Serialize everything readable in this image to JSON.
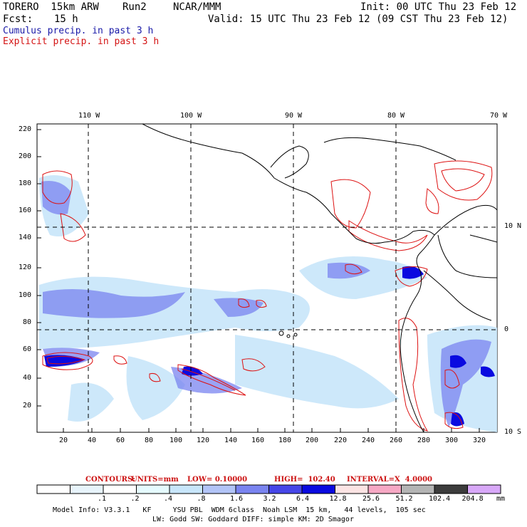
{
  "header": {
    "model": "TORERO  15km ARW",
    "run": "Run2",
    "org": "NCAR/MMM",
    "init": "Init: 00 UTC Thu 23 Feb 12",
    "fcst_label": "Fcst:",
    "fcst_value": "15 h",
    "valid": "Valid: 15 UTC Thu 23 Feb 12 (09 CST Thu 23 Feb 12)",
    "field1": "Cumulus precip. in past 3 h",
    "field2": "Explicit precip. in past 3 h",
    "field1_color": "#1a1aa8",
    "field2_color": "#d41414"
  },
  "top_axis": [
    "110 W",
    "100 W",
    "90 W",
    "80 W",
    "70 W"
  ],
  "left_axis": [
    "220",
    "200",
    "180",
    "160",
    "140",
    "120",
    "100",
    "80",
    "60",
    "40",
    "20"
  ],
  "bottom_axis": [
    "20",
    "40",
    "60",
    "80",
    "100",
    "120",
    "140",
    "160",
    "180",
    "200",
    "220",
    "240",
    "260",
    "280",
    "300",
    "320"
  ],
  "right_axis": [
    "10 N",
    "0",
    "10 S"
  ],
  "contour_info": {
    "contours": "CONTOURS:",
    "units": "UNITS=mm",
    "low": "LOW= 0.10000",
    "high": "HIGH=  102.40",
    "interval": "INTERVAL=X  4.0000"
  },
  "colorbar": {
    "colors": [
      "#ffffff",
      "#e8f4fb",
      "#ffffff",
      "#e6fbff",
      "#c8e6fa",
      "#b2c4f7",
      "#7a84f0",
      "#4646e8",
      "#0a0ae0",
      "#fce4e4",
      "#f6a8c4",
      "#b4b4b4",
      "#3c3c3c",
      "#d8a8f8"
    ],
    "labels": [
      ".1",
      ".2",
      ".4",
      ".8",
      "1.6",
      "3.2",
      "6.4",
      "12.8",
      "25.6",
      "51.2",
      "102.4",
      "204.8"
    ],
    "unit": "mm"
  },
  "footer": {
    "line1": "Model Info: V3.3.1   KF     YSU PBL  WDM 6class  Noah LSM  15 km,   44 levels,  105 sec",
    "line2": "LW: Godd SW: Goddard DIFF: simple KM: 2D Smagor"
  }
}
